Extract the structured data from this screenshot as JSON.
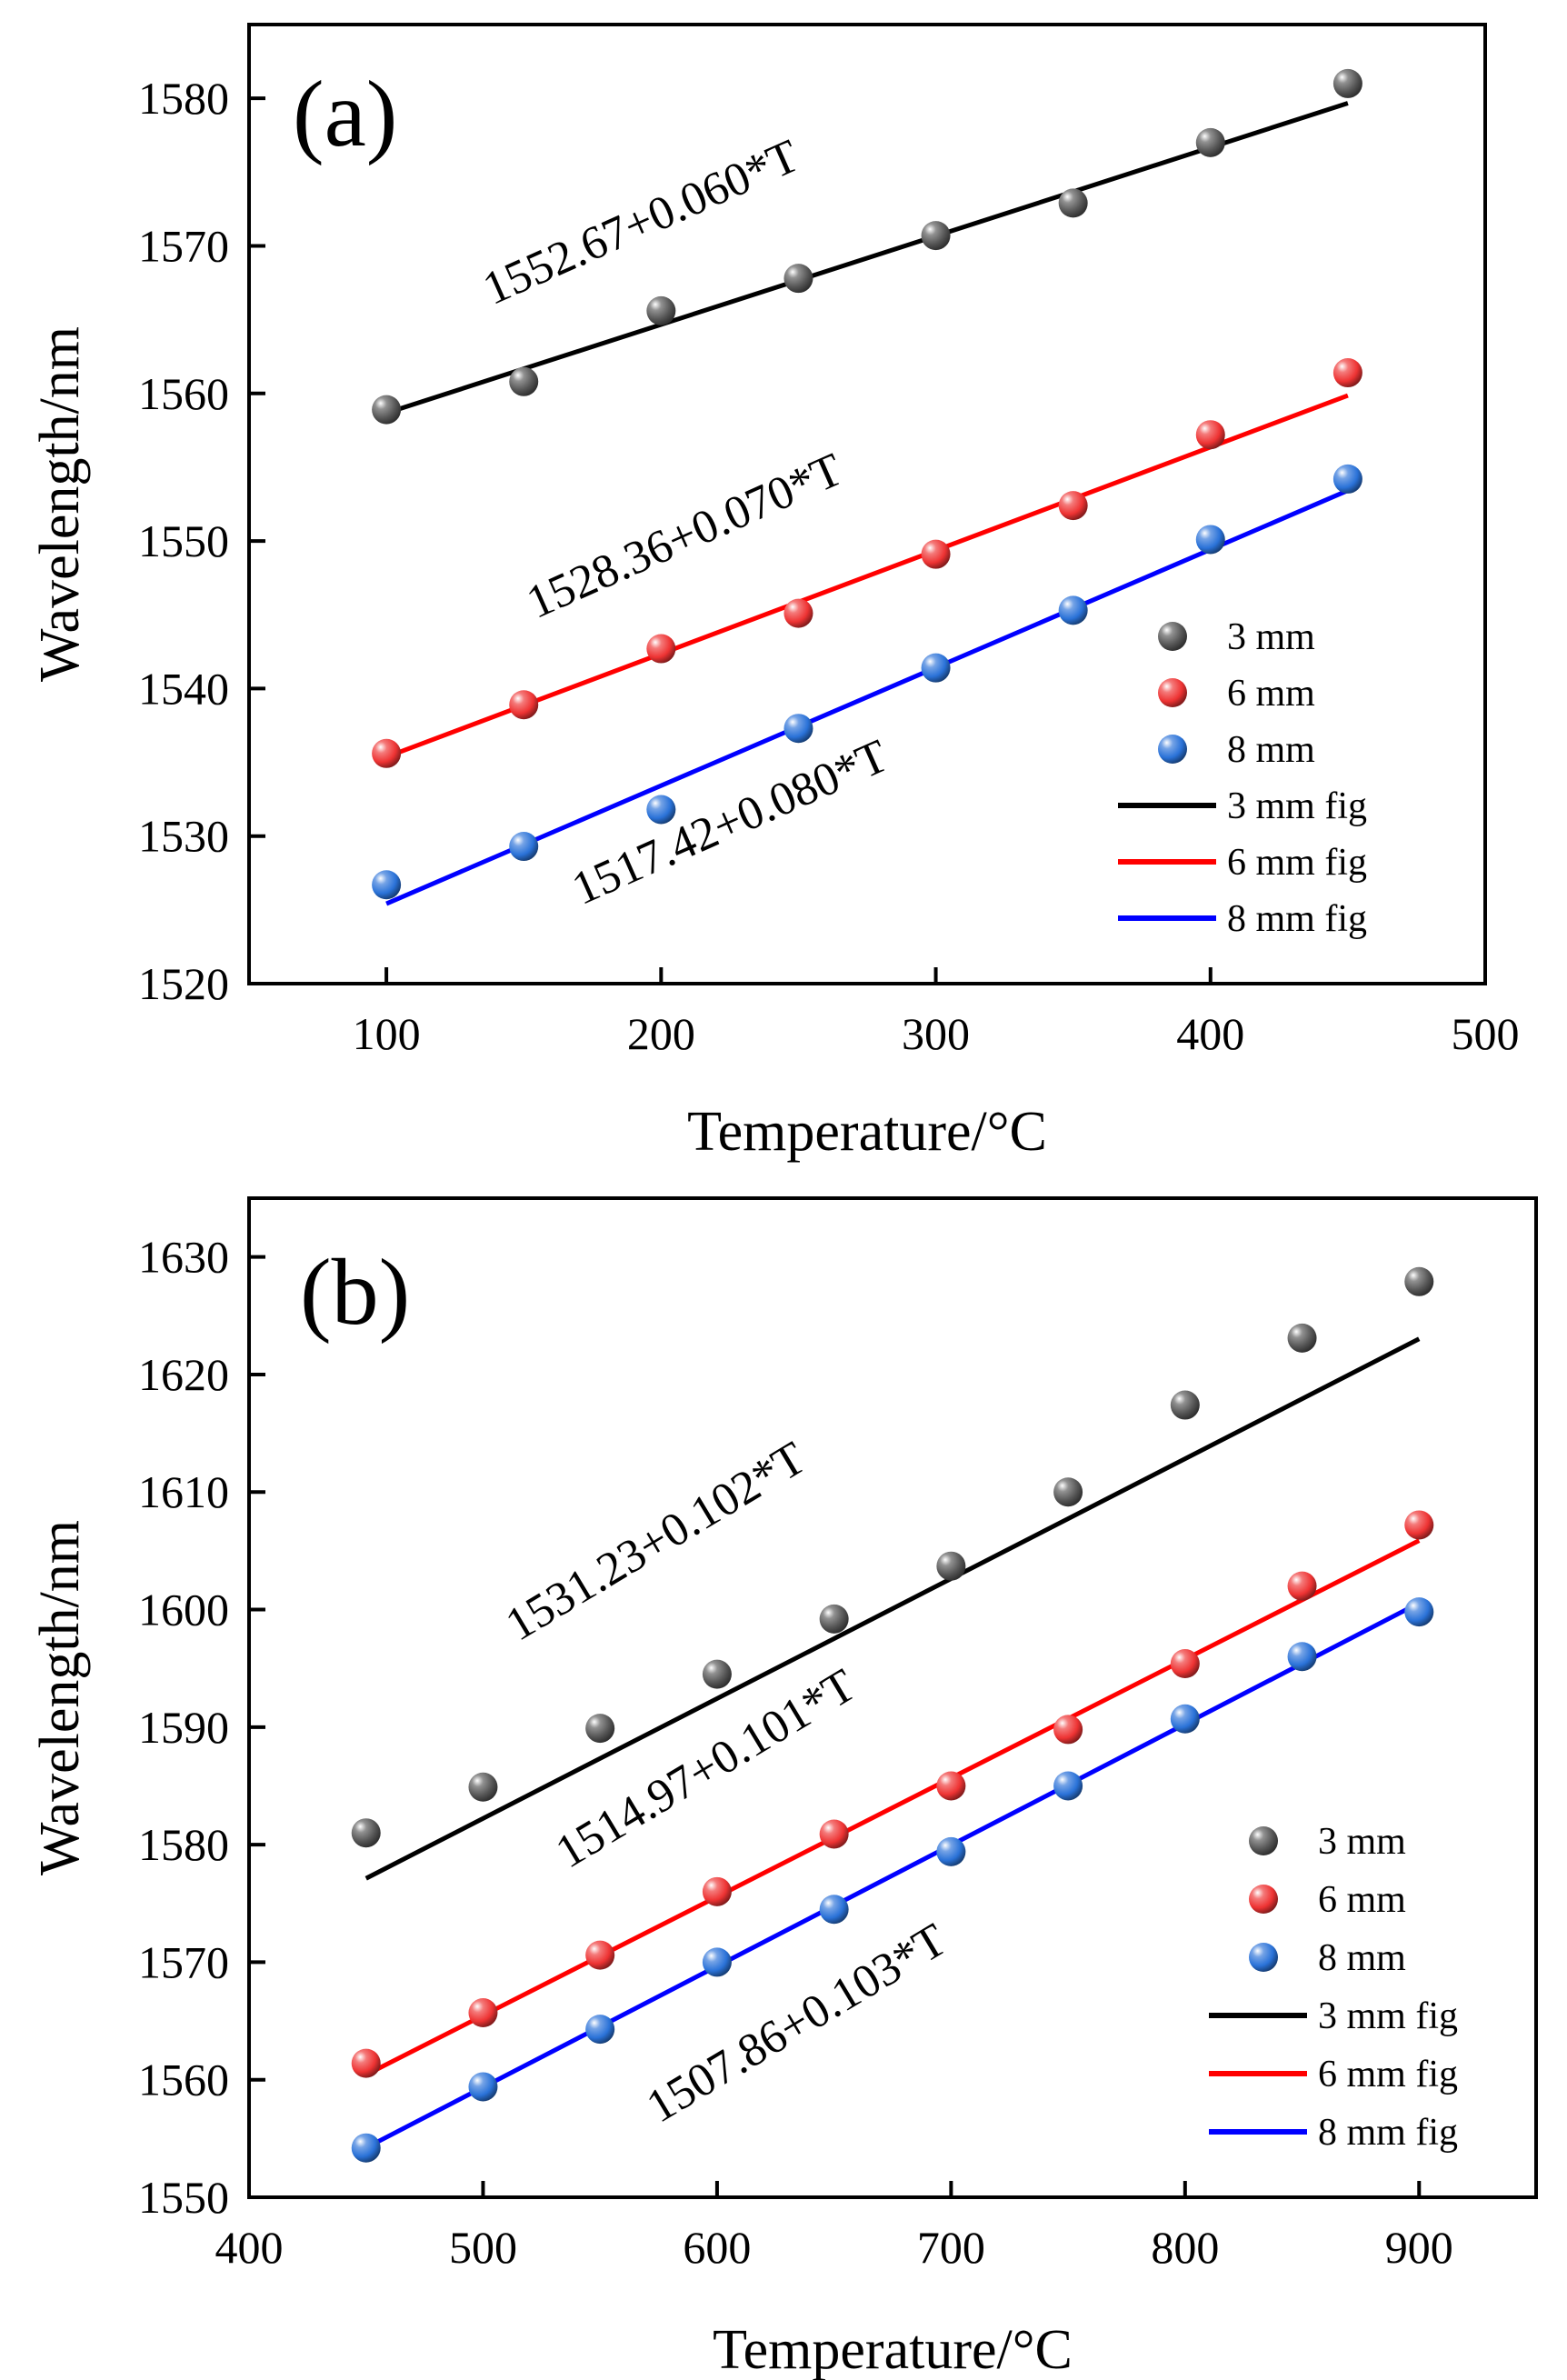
{
  "chart_data": [
    {
      "type": "scatter",
      "panel_label": "(a)",
      "xlabel": "Temperature/°C",
      "ylabel": "Wavelength/nm",
      "xlim": [
        50,
        500
      ],
      "ylim": [
        1520,
        1585
      ],
      "xticks": [
        100,
        200,
        300,
        400,
        500
      ],
      "yticks": [
        1520,
        1530,
        1540,
        1550,
        1560,
        1570,
        1580
      ],
      "x": [
        100,
        150,
        200,
        250,
        300,
        350,
        400,
        450
      ],
      "series": [
        {
          "name": "3 mm",
          "color": "#555555",
          "values": [
            1558.9,
            1560.8,
            1565.6,
            1567.8,
            1570.7,
            1572.9,
            1577.0,
            1581.0
          ]
        },
        {
          "name": "6 mm",
          "color": "#ee3333",
          "values": [
            1535.6,
            1538.9,
            1542.7,
            1545.1,
            1549.1,
            1552.4,
            1557.2,
            1561.4
          ]
        },
        {
          "name": "8 mm",
          "color": "#2a72d8",
          "values": [
            1526.7,
            1529.3,
            1531.8,
            1537.3,
            1541.4,
            1545.3,
            1550.1,
            1554.2
          ]
        }
      ],
      "fits": [
        {
          "name": "3 mm fig",
          "color": "#000000",
          "intercept": 1552.67,
          "slope": 0.06,
          "x_range": [
            100,
            450
          ],
          "equation": "1552.67+0.060*T"
        },
        {
          "name": "6 mm fig",
          "color": "#ff0000",
          "intercept": 1528.36,
          "slope": 0.07,
          "x_range": [
            100,
            450
          ],
          "equation": "1528.36+0.070*T"
        },
        {
          "name": "8 mm fig",
          "color": "#0000ff",
          "intercept": 1517.42,
          "slope": 0.08,
          "x_range": [
            100,
            450
          ],
          "equation": "1517.42+0.080*T"
        }
      ],
      "legend_location": "lower-right"
    },
    {
      "type": "scatter",
      "panel_label": "(b)",
      "xlabel": "Temperature/°C",
      "ylabel": "Wavelength/nm",
      "xlim": [
        400,
        950
      ],
      "ylim": [
        1550,
        1635
      ],
      "xticks": [
        400,
        500,
        600,
        700,
        800,
        900
      ],
      "yticks": [
        1550,
        1560,
        1570,
        1580,
        1590,
        1600,
        1610,
        1620,
        1630
      ],
      "x": [
        450,
        500,
        550,
        600,
        650,
        700,
        750,
        800,
        850,
        900
      ],
      "series": [
        {
          "name": "3 mm",
          "color": "#555555",
          "values": [
            1581.0,
            1584.9,
            1589.9,
            1594.5,
            1599.2,
            1603.7,
            1610.0,
            1617.4,
            1623.1,
            1627.9
          ]
        },
        {
          "name": "6 mm",
          "color": "#ee3333",
          "values": [
            1561.4,
            1565.7,
            1570.6,
            1576.0,
            1580.9,
            1585.0,
            1589.8,
            1595.4,
            1602.0,
            1607.2
          ]
        },
        {
          "name": "8 mm",
          "color": "#2a72d8",
          "values": [
            1554.2,
            1559.4,
            1564.3,
            1570.0,
            1574.5,
            1579.4,
            1585.0,
            1590.7,
            1596.0,
            1599.8
          ]
        }
      ],
      "fits": [
        {
          "name": "3 mm fig",
          "color": "#000000",
          "intercept": 1531.23,
          "slope": 0.102,
          "x_range": [
            450,
            900
          ],
          "equation": "1531.23+0.102*T"
        },
        {
          "name": "6 mm fig",
          "color": "#ff0000",
          "intercept": 1514.97,
          "slope": 0.101,
          "x_range": [
            450,
            900
          ],
          "equation": "1514.97+0.101*T"
        },
        {
          "name": "8 mm fig",
          "color": "#0000ff",
          "intercept": 1507.86,
          "slope": 0.103,
          "x_range": [
            450,
            900
          ],
          "equation": "1507.86+0.103*T"
        }
      ],
      "legend_location": "lower-right"
    }
  ]
}
